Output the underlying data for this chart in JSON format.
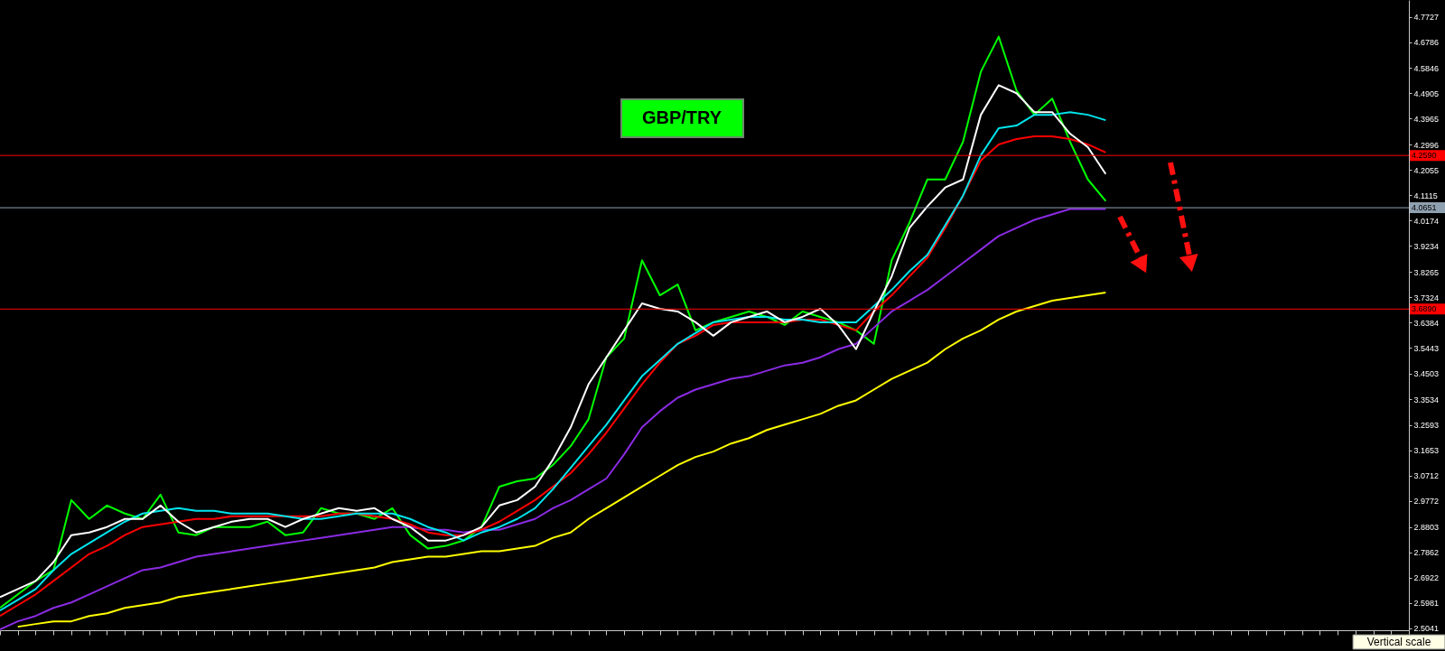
{
  "chart_data": {
    "type": "line",
    "title": "GBP/TRY",
    "categories": [
      null,
      null,
      null,
      null,
      null,
      null,
      null,
      null,
      null,
      null,
      null,
      null,
      null,
      null,
      null,
      null,
      null,
      null,
      null,
      null,
      null,
      null,
      null,
      null,
      null,
      null,
      null,
      null,
      null,
      null,
      null,
      null,
      null,
      null,
      null,
      null,
      null,
      null,
      null,
      null,
      null,
      null,
      null,
      null,
      null,
      null,
      null,
      null,
      null,
      null,
      null,
      null,
      null,
      null,
      null,
      null,
      null,
      null,
      null,
      null,
      null,
      null,
      null,
      null,
      null,
      null,
      null,
      null,
      null,
      null,
      null,
      null,
      null,
      null,
      null,
      null,
      null,
      null,
      null,
      null
    ],
    "series": [
      {
        "color": "#00ff00",
        "values": [
          2.58,
          2.63,
          2.68,
          2.72,
          2.98,
          2.91,
          2.96,
          2.93,
          2.91,
          3.0,
          2.86,
          2.85,
          2.88,
          2.88,
          2.88,
          2.9,
          2.85,
          2.86,
          2.95,
          2.93,
          2.93,
          2.91,
          2.95,
          2.85,
          2.8,
          2.81,
          2.83,
          2.88,
          3.03,
          3.05,
          3.06,
          3.11,
          3.18,
          3.28,
          3.51,
          3.58,
          3.87,
          3.74,
          3.78,
          3.61,
          3.64,
          3.66,
          3.68,
          3.66,
          3.63,
          3.68,
          3.66,
          3.64,
          3.61,
          3.56,
          3.87,
          4.01,
          4.17,
          4.17,
          4.31,
          4.57,
          4.7,
          4.5,
          4.41,
          4.47,
          4.31,
          4.17,
          4.09,
          null,
          null,
          null,
          null,
          null,
          null,
          null,
          null,
          null,
          null,
          null,
          null,
          null,
          null,
          null,
          null,
          null
        ]
      },
      {
        "color": "#8a2be2",
        "values": [
          2.5,
          2.53,
          2.55,
          2.58,
          2.6,
          2.63,
          2.66,
          2.69,
          2.72,
          2.73,
          2.75,
          2.77,
          2.78,
          2.79,
          2.8,
          2.81,
          2.82,
          2.83,
          2.84,
          2.85,
          2.86,
          2.87,
          2.88,
          2.88,
          2.87,
          2.87,
          2.86,
          2.87,
          2.87,
          2.89,
          2.91,
          2.95,
          2.98,
          3.02,
          3.06,
          3.15,
          3.25,
          3.31,
          3.36,
          3.39,
          3.41,
          3.43,
          3.44,
          3.46,
          3.48,
          3.49,
          3.51,
          3.54,
          3.56,
          3.62,
          3.68,
          3.72,
          3.76,
          3.81,
          3.86,
          3.91,
          3.96,
          3.99,
          4.02,
          4.04,
          4.06,
          4.06,
          4.06,
          null,
          null,
          null,
          null,
          null,
          null,
          null,
          null,
          null,
          null,
          null,
          null,
          null,
          null,
          null,
          null,
          null
        ]
      },
      {
        "color": "#ffff00",
        "values": [
          null,
          2.51,
          2.52,
          2.53,
          2.53,
          2.55,
          2.56,
          2.58,
          2.59,
          2.6,
          2.62,
          2.63,
          2.64,
          2.65,
          2.66,
          2.67,
          2.68,
          2.69,
          2.7,
          2.71,
          2.72,
          2.73,
          2.75,
          2.76,
          2.77,
          2.77,
          2.78,
          2.79,
          2.79,
          2.8,
          2.81,
          2.84,
          2.86,
          2.91,
          2.95,
          2.99,
          3.03,
          3.07,
          3.11,
          3.14,
          3.16,
          3.19,
          3.21,
          3.24,
          3.26,
          3.28,
          3.3,
          3.33,
          3.35,
          3.39,
          3.43,
          3.46,
          3.49,
          3.54,
          3.58,
          3.61,
          3.65,
          3.68,
          3.7,
          3.72,
          3.73,
          3.74,
          3.75,
          null,
          null,
          null,
          null,
          null,
          null,
          null,
          null,
          null,
          null,
          null,
          null,
          null,
          null,
          null,
          null,
          null
        ]
      },
      {
        "color": "#ff0000",
        "values": [
          2.55,
          2.59,
          2.63,
          2.68,
          2.73,
          2.78,
          2.81,
          2.85,
          2.88,
          2.89,
          2.9,
          2.91,
          2.91,
          2.92,
          2.92,
          2.92,
          2.92,
          2.92,
          2.92,
          2.93,
          2.93,
          2.92,
          2.91,
          2.89,
          2.86,
          2.85,
          2.85,
          2.87,
          2.9,
          2.94,
          2.98,
          3.03,
          3.08,
          3.15,
          3.23,
          3.32,
          3.41,
          3.49,
          3.56,
          3.59,
          3.63,
          3.64,
          3.64,
          3.64,
          3.64,
          3.65,
          3.65,
          3.63,
          3.61,
          3.68,
          3.74,
          3.81,
          3.88,
          3.99,
          4.11,
          4.24,
          4.3,
          4.32,
          4.33,
          4.33,
          4.32,
          4.3,
          4.27,
          null,
          null,
          null,
          null,
          null,
          null,
          null,
          null,
          null,
          null,
          null,
          null,
          null,
          null,
          null,
          null,
          null
        ]
      },
      {
        "color": "#00e5ee",
        "values": [
          2.57,
          2.61,
          2.65,
          2.72,
          2.78,
          2.82,
          2.86,
          2.9,
          2.93,
          2.94,
          2.95,
          2.94,
          2.94,
          2.93,
          2.93,
          2.93,
          2.92,
          2.91,
          2.91,
          2.92,
          2.93,
          2.93,
          2.93,
          2.91,
          2.88,
          2.86,
          2.83,
          2.86,
          2.88,
          2.91,
          2.95,
          3.02,
          3.1,
          3.18,
          3.26,
          3.35,
          3.44,
          3.5,
          3.56,
          3.6,
          3.64,
          3.65,
          3.66,
          3.66,
          3.65,
          3.65,
          3.64,
          3.64,
          3.64,
          3.7,
          3.76,
          3.83,
          3.89,
          4.0,
          4.11,
          4.26,
          4.36,
          4.37,
          4.41,
          4.41,
          4.42,
          4.41,
          4.39,
          null,
          null,
          null,
          null,
          null,
          null,
          null,
          null,
          null,
          null,
          null,
          null,
          null,
          null,
          null,
          null,
          null
        ]
      },
      {
        "color": "#ffffff",
        "values": [
          2.62,
          2.65,
          2.68,
          2.75,
          2.85,
          2.86,
          2.88,
          2.91,
          2.91,
          2.96,
          2.9,
          2.86,
          2.88,
          2.9,
          2.91,
          2.91,
          2.88,
          2.91,
          2.93,
          2.95,
          2.94,
          2.95,
          2.91,
          2.88,
          2.83,
          2.83,
          2.85,
          2.88,
          2.96,
          2.98,
          3.03,
          3.13,
          3.25,
          3.41,
          3.51,
          3.61,
          3.71,
          3.69,
          3.68,
          3.64,
          3.59,
          3.64,
          3.66,
          3.68,
          3.64,
          3.66,
          3.69,
          3.63,
          3.54,
          3.68,
          3.81,
          3.99,
          4.07,
          4.14,
          4.17,
          4.41,
          4.52,
          4.49,
          4.42,
          4.42,
          4.34,
          4.29,
          4.19,
          null,
          null,
          null,
          null,
          null,
          null,
          null,
          null,
          null,
          null,
          null,
          null,
          null,
          null,
          null,
          null,
          null
        ]
      }
    ],
    "ylim": [
      2.497,
      4.836
    ],
    "yticks": [
      2.5041,
      2.5981,
      2.6922,
      2.7862,
      2.8803,
      2.9772,
      3.0712,
      3.1653,
      3.2593,
      3.3534,
      3.4503,
      3.5443,
      3.6384,
      3.7324,
      3.8265,
      3.9234,
      4.0174,
      4.1115,
      4.2055,
      4.2996,
      4.3965,
      4.4905,
      4.5846,
      4.6786,
      4.7727
    ],
    "ref_lines": [
      {
        "axis": "y",
        "value": 4.259,
        "label": "4.2590",
        "color": "#ff0000"
      },
      {
        "axis": "y",
        "value": 4.0651,
        "label": "4.0651",
        "color": "#8fa0b0"
      },
      {
        "axis": "y",
        "value": 3.689,
        "label": "3.6890",
        "color": "#ff0000"
      }
    ],
    "grid": false,
    "tick_labels": "y",
    "annotations": [
      "Vertical scale"
    ]
  }
}
